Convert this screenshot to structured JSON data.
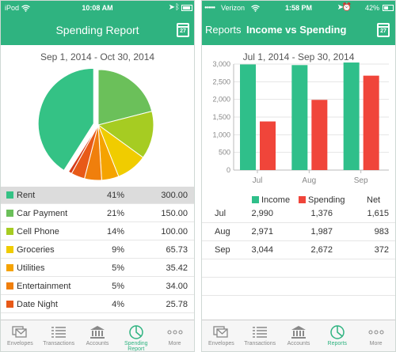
{
  "left": {
    "status": {
      "carrier": "iPod",
      "time": "10:08 AM"
    },
    "title": "Spending Report",
    "calendar_day": "27",
    "date_range": "Sep 1, 2014 - Oct 30, 2014",
    "categories": [
      {
        "name": "Rent",
        "percent": "41%",
        "amount": "300.00",
        "color": "#34c285"
      },
      {
        "name": "Car Payment",
        "percent": "21%",
        "amount": "150.00",
        "color": "#6bc05a"
      },
      {
        "name": "Cell Phone",
        "percent": "14%",
        "amount": "100.00",
        "color": "#a6cc22"
      },
      {
        "name": "Groceries",
        "percent": "9%",
        "amount": "65.73",
        "color": "#f0cc00"
      },
      {
        "name": "Utilities",
        "percent": "5%",
        "amount": "35.42",
        "color": "#f5a300"
      },
      {
        "name": "Entertainment",
        "percent": "5%",
        "amount": "34.00",
        "color": "#f07f0c"
      },
      {
        "name": "Date Night",
        "percent": "4%",
        "amount": "25.78",
        "color": "#e85a18"
      }
    ],
    "pie_slices": [
      {
        "value": 41,
        "color": "#34c285"
      },
      {
        "value": 21,
        "color": "#6bc05a"
      },
      {
        "value": 14,
        "color": "#a6cc22"
      },
      {
        "value": 9,
        "color": "#f0cc00"
      },
      {
        "value": 5,
        "color": "#f5a300"
      },
      {
        "value": 5,
        "color": "#f07f0c"
      },
      {
        "value": 4,
        "color": "#e85a18"
      },
      {
        "value": 1,
        "color": "#d63c1a"
      }
    ]
  },
  "right": {
    "status": {
      "carrier": "Verizon",
      "time": "1:58 PM",
      "battery": "42%"
    },
    "back_label": "Reports",
    "title": "Income vs Spending",
    "calendar_day": "27",
    "date_range": "Jul 1, 2014 - Sep 30, 2014",
    "legend": {
      "income": "Income",
      "spending": "Spending",
      "net": "Net"
    },
    "rows": [
      {
        "month": "Jul",
        "income": "2,990",
        "spending": "1,376",
        "net": "1,615"
      },
      {
        "month": "Aug",
        "income": "2,971",
        "spending": "1,987",
        "net": "983"
      },
      {
        "month": "Sep",
        "income": "3,044",
        "spending": "2,672",
        "net": "372"
      }
    ]
  },
  "chart_data": {
    "type": "bar",
    "categories": [
      "Jul",
      "Aug",
      "Sep"
    ],
    "series": [
      {
        "name": "Income",
        "values": [
          2990,
          2971,
          3044
        ],
        "color": "#2fbf8a"
      },
      {
        "name": "Spending",
        "values": [
          1376,
          1987,
          2672
        ],
        "color": "#f0453a"
      }
    ],
    "ylim": [
      0,
      3000
    ],
    "yticks": [
      "0",
      "500",
      "1,000",
      "1,500",
      "2,000",
      "2,500",
      "3,000"
    ],
    "ytick_values": [
      0,
      500,
      1000,
      1500,
      2000,
      2500,
      3000
    ]
  },
  "tabs": [
    {
      "label": "Envelopes",
      "icon": "envelopes-icon"
    },
    {
      "label": "Transactions",
      "icon": "transactions-icon"
    },
    {
      "label": "Accounts",
      "icon": "accounts-icon"
    },
    {
      "label": "Spending Report",
      "icon": "spending-report-icon"
    },
    {
      "label": "More",
      "icon": "more-icon"
    }
  ],
  "right_tabs": [
    {
      "label": "Envelopes"
    },
    {
      "label": "Transactions"
    },
    {
      "label": "Accounts"
    },
    {
      "label": "Reports"
    },
    {
      "label": "More"
    }
  ]
}
